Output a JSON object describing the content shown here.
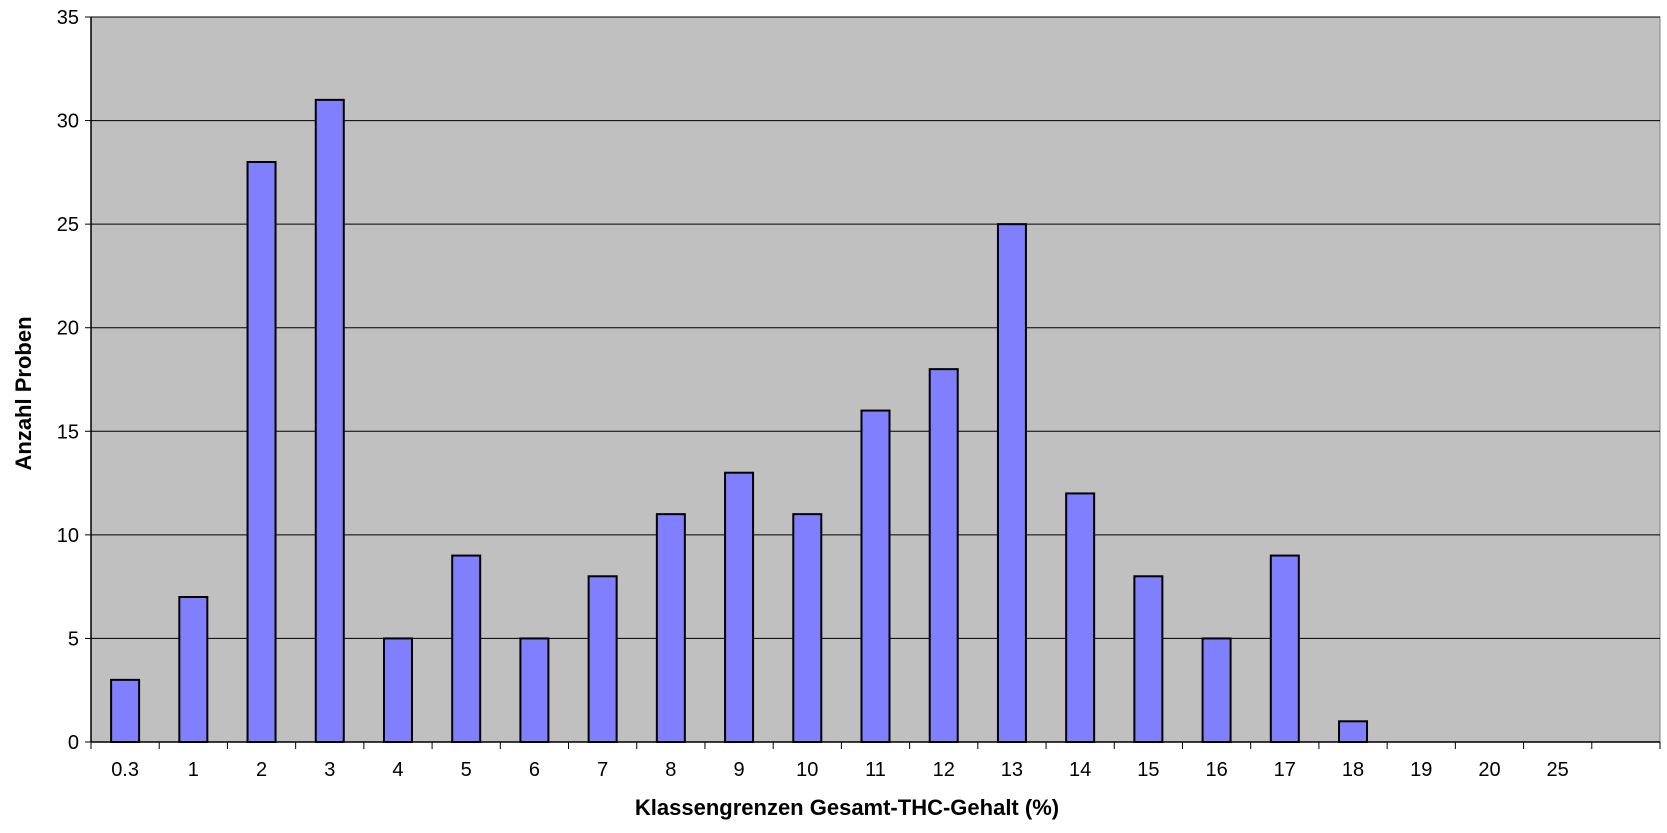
{
  "chart_data": {
    "type": "bar",
    "categories": [
      "0.3",
      "1",
      "2",
      "3",
      "4",
      "5",
      "6",
      "7",
      "8",
      "9",
      "10",
      "11",
      "12",
      "13",
      "14",
      "15",
      "16",
      "17",
      "18",
      "19",
      "20",
      "25",
      ""
    ],
    "values": [
      3,
      7,
      28,
      31,
      5,
      9,
      5,
      8,
      11,
      13,
      11,
      16,
      18,
      25,
      12,
      8,
      5,
      9,
      1,
      0,
      0,
      0,
      0
    ],
    "xlabel": "Klassengrenzen Gesamt-THC-Gehalt (%)",
    "ylabel": "Anzahl Proben",
    "ylim": [
      0,
      35
    ],
    "yticks": [
      0,
      5,
      10,
      15,
      20,
      25,
      30,
      35
    ],
    "grid": true,
    "legend": "none",
    "colors": {
      "bar_fill": "#8080FF",
      "bar_stroke": "#000000",
      "plot_background": "#C0C0C0",
      "gridline": "#000000"
    }
  }
}
